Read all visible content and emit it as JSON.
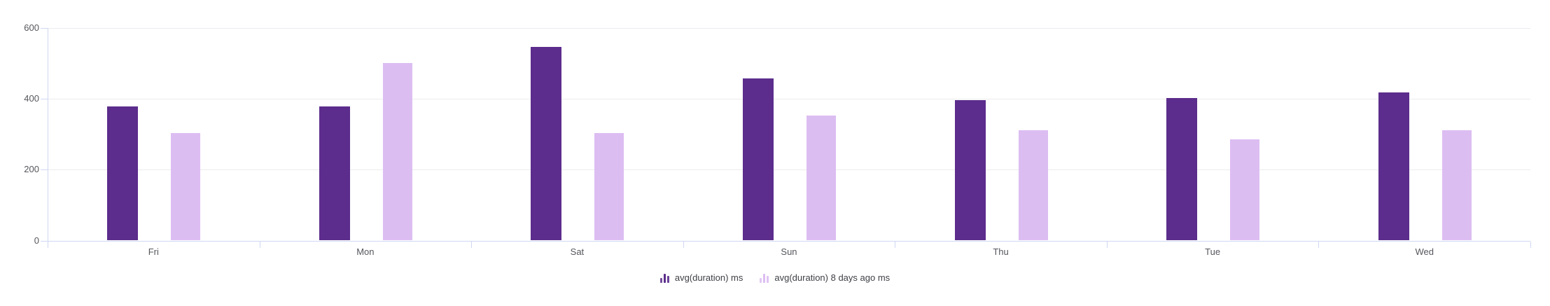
{
  "chart_data": {
    "type": "bar",
    "title": "",
    "xlabel": "",
    "ylabel": "",
    "categories": [
      "Fri",
      "Mon",
      "Sat",
      "Sun",
      "Thu",
      "Tue",
      "Wed"
    ],
    "series": [
      {
        "name": "avg(duration) ms",
        "color": "#5c2d8c",
        "values": [
          378,
          378,
          545,
          457,
          396,
          401,
          418
        ]
      },
      {
        "name": "avg(duration) 8 days ago ms",
        "color": "#dcbdf2",
        "values": [
          302,
          501,
          302,
          353,
          311,
          286,
          310
        ]
      }
    ],
    "ylim": [
      0,
      600
    ],
    "y_ticks": [
      0,
      200,
      400,
      600
    ],
    "grid": "horizontal-only",
    "legend_position": "bottom-center",
    "colors": {
      "background": "#ffffff",
      "axis_line": "#cfd8f2",
      "gridline": "#ebebee",
      "tick_label": "#55565c",
      "legend_label": "#3e3f45"
    }
  }
}
